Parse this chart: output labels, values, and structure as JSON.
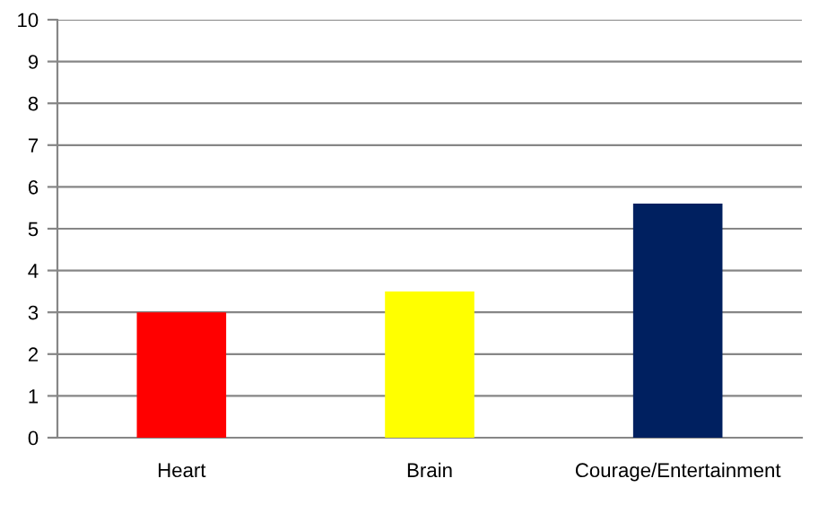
{
  "chart_data": {
    "type": "bar",
    "categories": [
      "Heart",
      "Brain",
      "Courage/Entertainment"
    ],
    "values": [
      3,
      3.5,
      5.6
    ],
    "colors": [
      "#ff0000",
      "#ffff00",
      "#002060"
    ],
    "ylim": [
      0,
      10
    ],
    "yticks": [
      0,
      1,
      2,
      3,
      4,
      5,
      6,
      7,
      8,
      9,
      10
    ],
    "grid": "y",
    "legend": false
  }
}
